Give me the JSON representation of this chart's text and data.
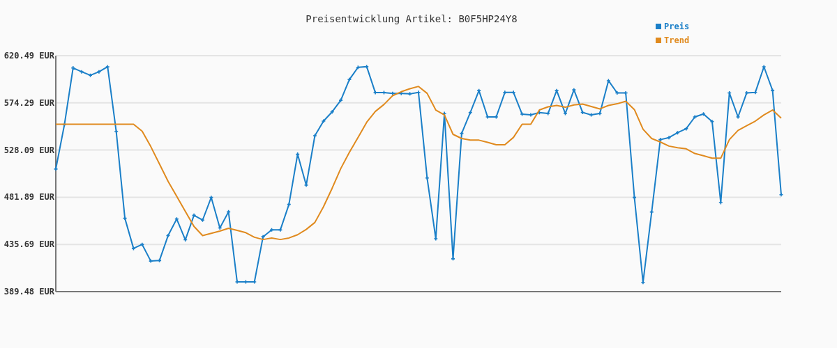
{
  "chart_data": {
    "type": "line",
    "title": "Preisentwicklung Artikel: B0F5HP24Y8",
    "categories": [
      null,
      null,
      null,
      null,
      null,
      null,
      null,
      null,
      null,
      null,
      null,
      null,
      null,
      null,
      null,
      null,
      null,
      null,
      null,
      null,
      null,
      null,
      null,
      null,
      null,
      null,
      null,
      null,
      null,
      null,
      null,
      null,
      null,
      null,
      null,
      null,
      null,
      null,
      null,
      null,
      null,
      null,
      null,
      null,
      null,
      null,
      null,
      null,
      null,
      null,
      null,
      null,
      null,
      null,
      null,
      null,
      null,
      null,
      null,
      null,
      null,
      null,
      null,
      null,
      null,
      null,
      null,
      null,
      null,
      null,
      null,
      null,
      null,
      null,
      null,
      null,
      null,
      null,
      null,
      null,
      null,
      null,
      null,
      null,
      null
    ],
    "series": [
      {
        "name": "Preis",
        "color": "#1a7fc8",
        "marker": "cross",
        "values": [
          509.5,
          553.0,
          608.5,
          604.7,
          601.3,
          604.7,
          609.6,
          546.2,
          461.3,
          431.8,
          435.7,
          419.4,
          419.9,
          444.3,
          460.6,
          440.2,
          464.2,
          459.5,
          481.7,
          451.8,
          467.6,
          399.0,
          399.0,
          399.0,
          443.2,
          449.9,
          449.9,
          474.9,
          524.0,
          493.7,
          542.1,
          556.4,
          565.5,
          576.8,
          597.2,
          609.1,
          609.8,
          584.3,
          584.3,
          583.6,
          583.6,
          583.1,
          584.5,
          500.7,
          441.3,
          563.9,
          421.6,
          544.4,
          564.8,
          586.3,
          560.5,
          560.5,
          584.5,
          584.5,
          563.2,
          562.5,
          564.8,
          563.9,
          586.3,
          563.9,
          587.0,
          565.0,
          562.5,
          563.9,
          596.0,
          584.0,
          584.0,
          481.7,
          398.5,
          467.4,
          538.3,
          540.3,
          545.1,
          549.0,
          560.5,
          563.4,
          556.0,
          476.7,
          584.0,
          560.5,
          584.0,
          584.5,
          609.6,
          586.5,
          484.4
        ]
      },
      {
        "name": "Trend",
        "color": "#e08a1e",
        "marker": "none",
        "values": [
          553.4,
          553.4,
          553.4,
          553.4,
          553.4,
          553.4,
          553.4,
          553.4,
          553.4,
          553.4,
          546.6,
          531.5,
          514.5,
          497.5,
          482.8,
          468.1,
          453.4,
          444.3,
          446.6,
          448.8,
          451.5,
          449.5,
          447.2,
          442.7,
          440.5,
          442.0,
          440.5,
          442.0,
          445.2,
          450.4,
          457.2,
          472.6,
          490.7,
          510.0,
          525.9,
          540.5,
          555.3,
          565.9,
          572.7,
          581.3,
          585.2,
          588.1,
          590.4,
          583.6,
          567.3,
          562.5,
          543.5,
          539.4,
          537.8,
          537.8,
          535.6,
          533.3,
          533.3,
          540.5,
          553.4,
          553.4,
          567.3,
          570.4,
          571.8,
          570.0,
          572.3,
          573.1,
          570.7,
          568.4,
          571.8,
          573.4,
          575.9,
          567.7,
          548.5,
          539.4,
          536.0,
          532.0,
          530.3,
          529.3,
          524.7,
          522.5,
          520.1,
          520.1,
          538.3,
          547.3,
          551.9,
          556.4,
          562.5,
          567.3,
          559.4
        ]
      }
    ],
    "ylim": [
      389.48,
      620.49
    ],
    "yticks": [
      {
        "value": 389.48,
        "label": "389.48 EUR"
      },
      {
        "value": 435.69,
        "label": "435.69 EUR"
      },
      {
        "value": 481.89,
        "label": "481.89 EUR"
      },
      {
        "value": 528.09,
        "label": "528.09 EUR"
      },
      {
        "value": 574.29,
        "label": "574.29 EUR"
      },
      {
        "value": 620.49,
        "label": "620.49 EUR"
      }
    ],
    "grid": "y",
    "legend": "top right",
    "line_style": "solid"
  }
}
